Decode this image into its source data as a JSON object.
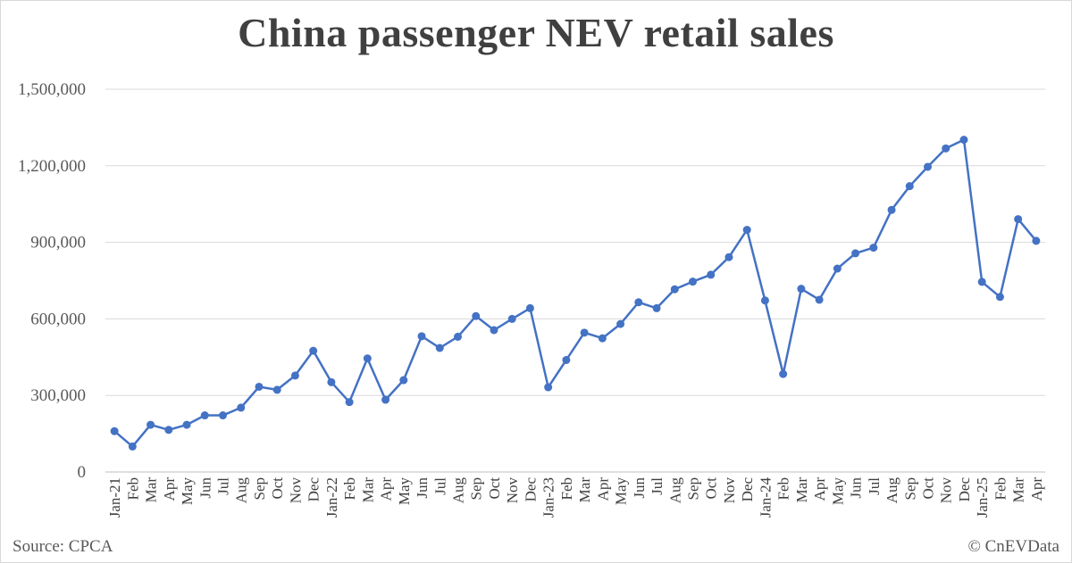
{
  "chart_data": {
    "type": "line",
    "title": "China passenger NEV retail sales",
    "xlabel": "",
    "ylabel": "",
    "ylim": [
      0,
      1500000
    ],
    "yticks": [
      "0",
      "300,000",
      "600,000",
      "900,000",
      "1,200,000",
      "1,500,000"
    ],
    "grid": true,
    "colors": {
      "line": "#4472c4",
      "grid": "#d9d9d9",
      "text": "#595959"
    },
    "categories": [
      "Jan-21",
      "Feb",
      "Mar",
      "Apr",
      "May",
      "Jun",
      "Jul",
      "Aug",
      "Sep",
      "Oct",
      "Nov",
      "Dec",
      "Jan-22",
      "Feb",
      "Mar",
      "Apr",
      "May",
      "Jun",
      "Jul",
      "Aug",
      "Sep",
      "Oct",
      "Nov",
      "Dec",
      "Jan-23",
      "Feb",
      "Mar",
      "Apr",
      "May",
      "Jun",
      "Jul",
      "Aug",
      "Sep",
      "Oct",
      "Nov",
      "Dec",
      "Jan-24",
      "Feb",
      "Mar",
      "Apr",
      "May",
      "Jun",
      "Jul",
      "Aug",
      "Sep",
      "Oct",
      "Nov",
      "Dec",
      "Jan-25",
      "Feb",
      "Mar",
      "Apr"
    ],
    "series": [
      {
        "values": [
          160000,
          100000,
          185000,
          165000,
          185000,
          222000,
          222000,
          252000,
          334000,
          322000,
          378000,
          475000,
          352000,
          274000,
          445000,
          283000,
          360000,
          532000,
          486000,
          530000,
          611000,
          556000,
          600000,
          642000,
          332000,
          439000,
          546000,
          524000,
          580000,
          665000,
          642000,
          716000,
          746000,
          773000,
          842000,
          949000,
          672000,
          384000,
          718000,
          675000,
          797000,
          857000,
          879000,
          1027000,
          1120000,
          1196000,
          1268000,
          1302000,
          745000,
          686000,
          991000,
          906000
        ]
      }
    ]
  },
  "footer": {
    "source": "Source: CPCA",
    "copyright": "© CnEVData"
  }
}
